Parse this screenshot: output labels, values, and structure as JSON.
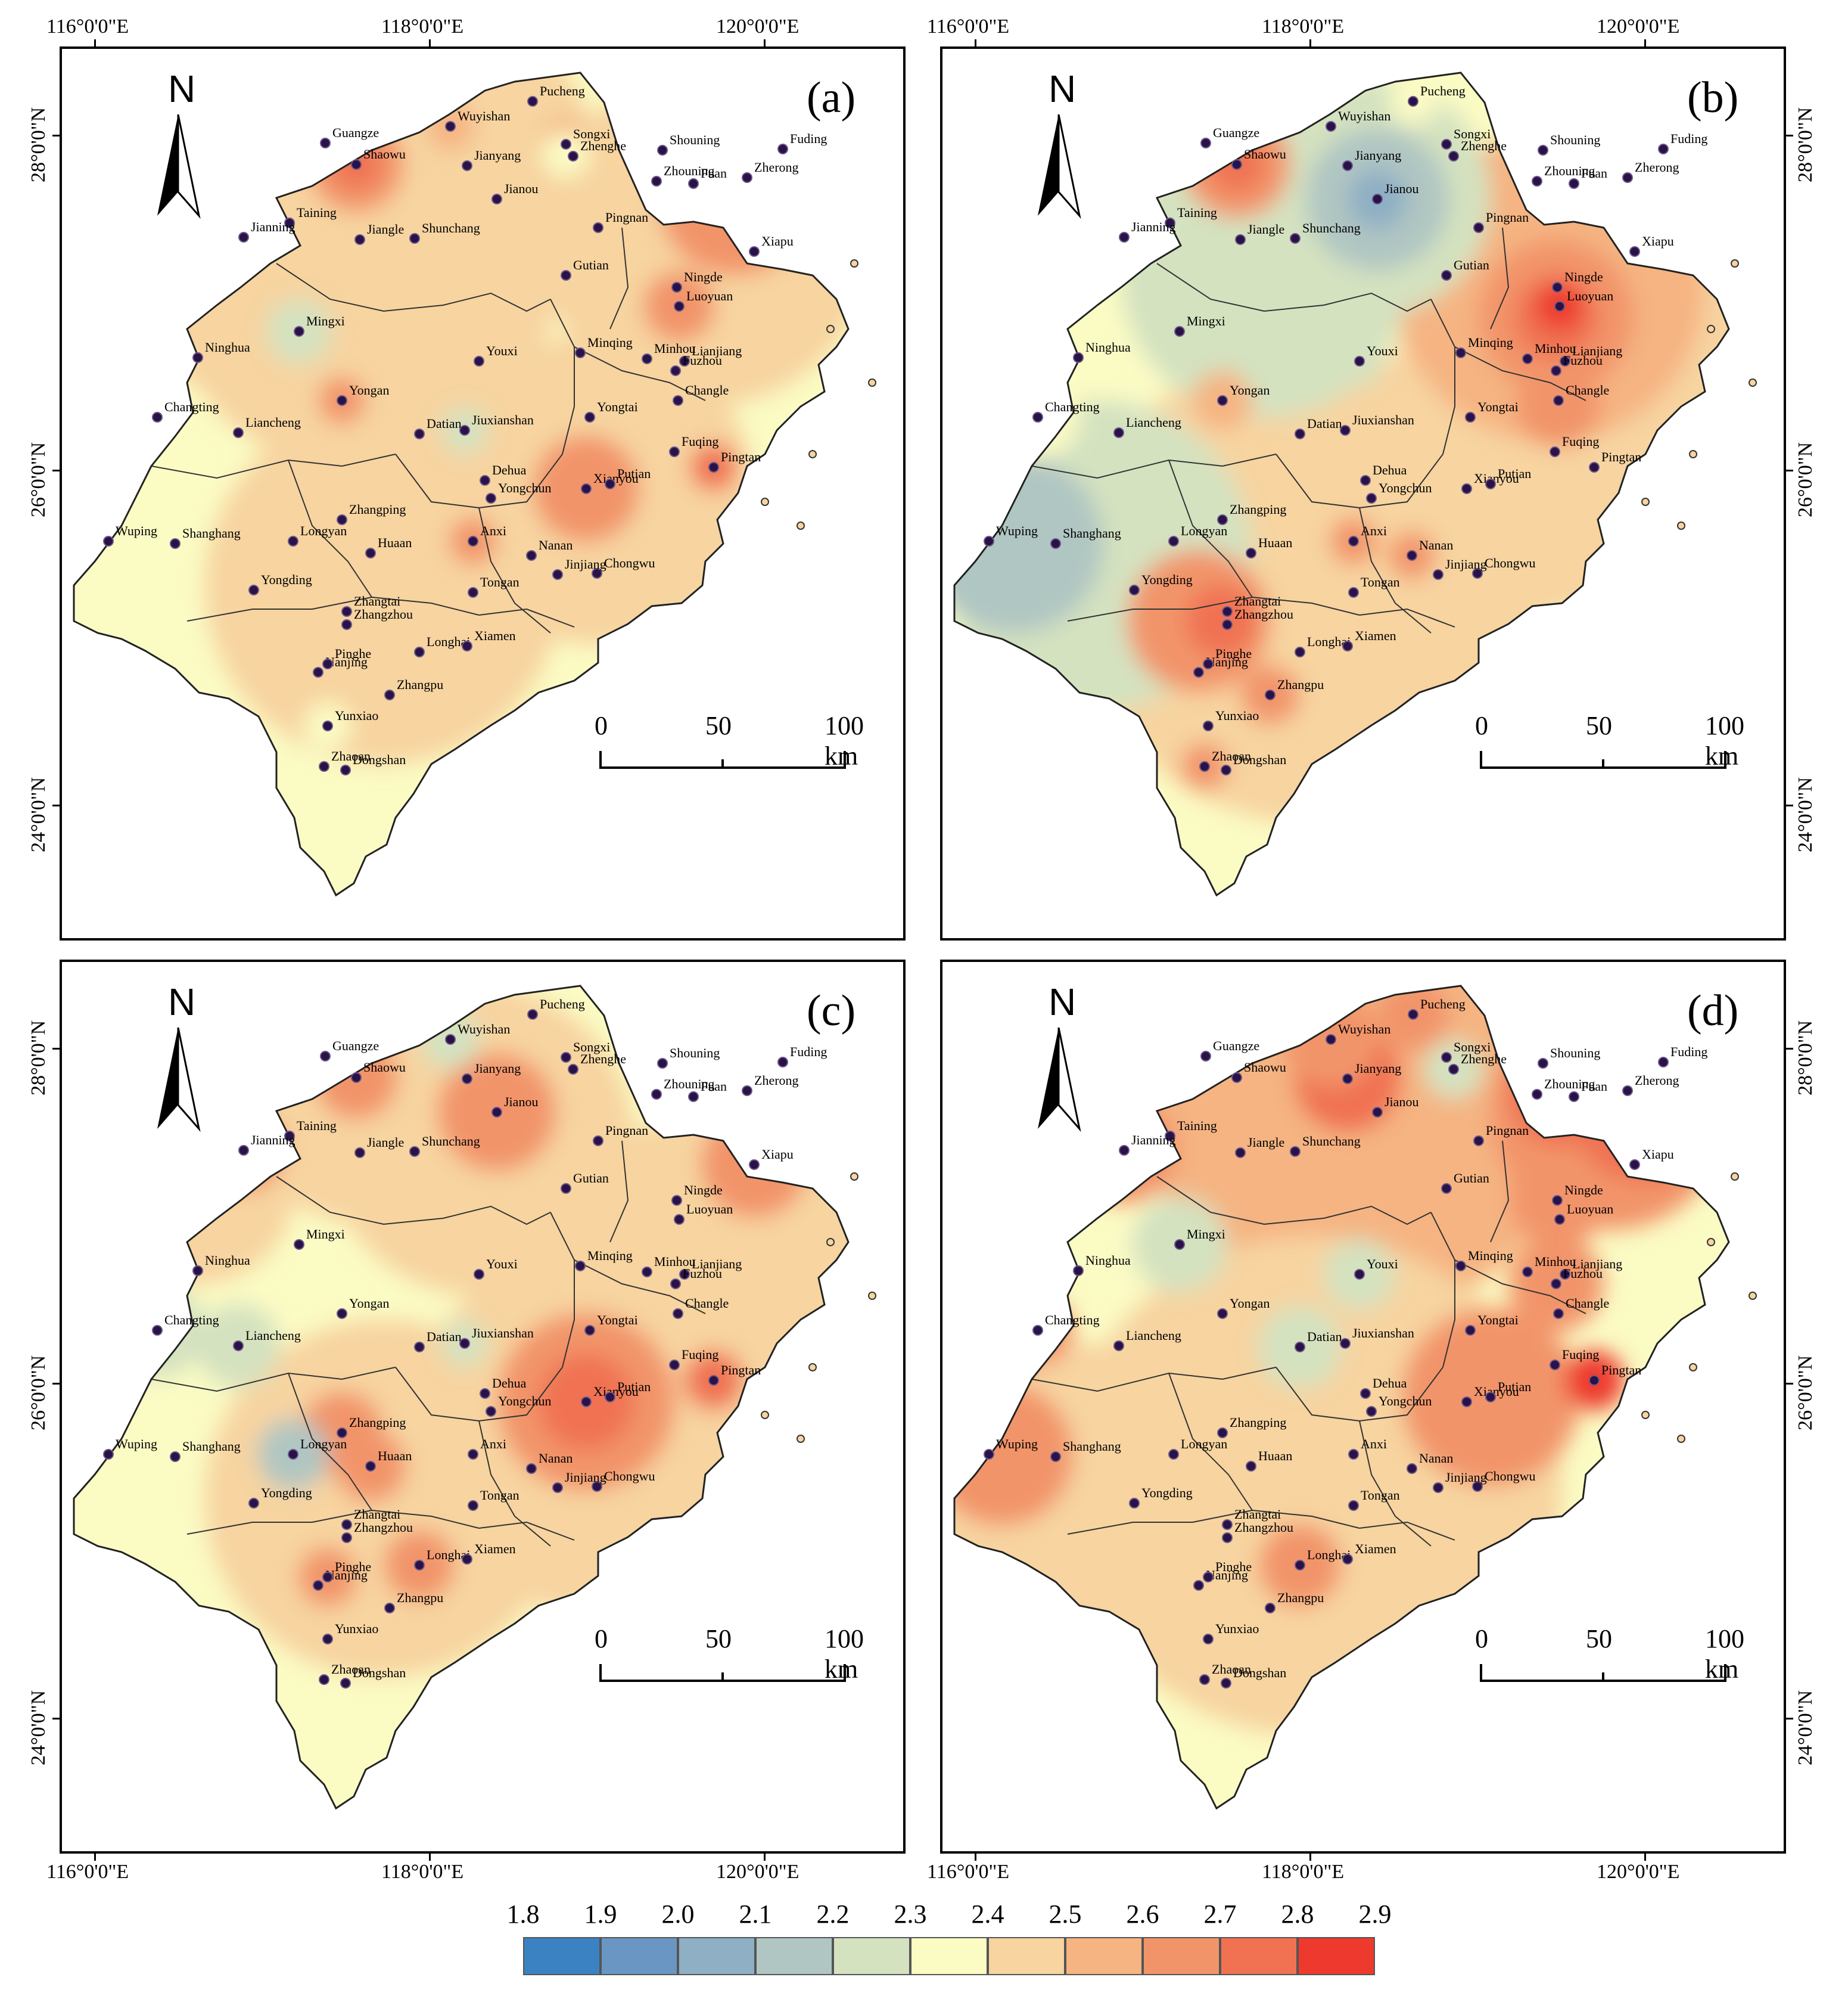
{
  "panels": [
    {
      "label": "(a)",
      "id": "a"
    },
    {
      "label": "(b)",
      "id": "b"
    },
    {
      "label": "(c)",
      "id": "c"
    },
    {
      "label": "(d)",
      "id": "d"
    }
  ],
  "axes": {
    "lon_ticks": [
      "116°0'0\"E",
      "118°0'0\"E",
      "120°0'0\"E"
    ],
    "lat_ticks": [
      "28°0'0\"N",
      "26°0'0\"N",
      "24°0'0\"N"
    ]
  },
  "north_arrow": {
    "label": "N"
  },
  "scale_bar": {
    "labels": [
      "0",
      "50",
      "100 km"
    ]
  },
  "legend": {
    "values": [
      "1.8",
      "1.9",
      "2.0",
      "2.1",
      "2.2",
      "2.3",
      "2.4",
      "2.5",
      "2.6",
      "2.7",
      "2.8",
      "2.9"
    ],
    "colors": [
      "#3a82c2",
      "#6a96c4",
      "#8eafc4",
      "#b0c6c2",
      "#d4e2c0",
      "#fbfbc4",
      "#f7d4a0",
      "#f5b482",
      "#f2946a",
      "#f07252",
      "#ee3a2e"
    ]
  },
  "cities": [
    {
      "name": "Pucheng"
    },
    {
      "name": "Wuyishan"
    },
    {
      "name": "Guangze"
    },
    {
      "name": "Songxi"
    },
    {
      "name": "Shaowu"
    },
    {
      "name": "Jianyang"
    },
    {
      "name": "Zhenghe"
    },
    {
      "name": "Shouning"
    },
    {
      "name": "Fuding"
    },
    {
      "name": "Zherong"
    },
    {
      "name": "Zhouning"
    },
    {
      "name": "Fuan"
    },
    {
      "name": "Jianou"
    },
    {
      "name": "Taining"
    },
    {
      "name": "Jianning"
    },
    {
      "name": "Jiangle"
    },
    {
      "name": "Shunchang"
    },
    {
      "name": "Pingnan"
    },
    {
      "name": "Xiapu"
    },
    {
      "name": "Gutian"
    },
    {
      "name": "Ningde"
    },
    {
      "name": "Luoyuan"
    },
    {
      "name": "Mingxi"
    },
    {
      "name": "Ninghua"
    },
    {
      "name": "Minqing"
    },
    {
      "name": "Minhou"
    },
    {
      "name": "Lianjiang"
    },
    {
      "name": "Youxi"
    },
    {
      "name": "Fuzhou"
    },
    {
      "name": "Yongan"
    },
    {
      "name": "Changle"
    },
    {
      "name": "Changting"
    },
    {
      "name": "Yongtai"
    },
    {
      "name": "Liancheng"
    },
    {
      "name": "Datian"
    },
    {
      "name": "Jiuxianshan"
    },
    {
      "name": "Fuqing"
    },
    {
      "name": "Pingtan"
    },
    {
      "name": "Dehua"
    },
    {
      "name": "Yongchun"
    },
    {
      "name": "Xianyou"
    },
    {
      "name": "Putian"
    },
    {
      "name": "Zhangping"
    },
    {
      "name": "Wuping"
    },
    {
      "name": "Shanghang"
    },
    {
      "name": "Longyan"
    },
    {
      "name": "Huaan"
    },
    {
      "name": "Anxi"
    },
    {
      "name": "Nanan"
    },
    {
      "name": "Chongwu"
    },
    {
      "name": "Jinjiang"
    },
    {
      "name": "Yongding"
    },
    {
      "name": "Tongan"
    },
    {
      "name": "Zhangtai"
    },
    {
      "name": "Zhangzhou"
    },
    {
      "name": "Longhai"
    },
    {
      "name": "Xiamen"
    },
    {
      "name": "Nanjing"
    },
    {
      "name": "Pinghe"
    },
    {
      "name": "Zhangpu"
    },
    {
      "name": "Yunxiao"
    },
    {
      "name": "Zhaoan"
    },
    {
      "name": "Dongshan"
    }
  ]
}
